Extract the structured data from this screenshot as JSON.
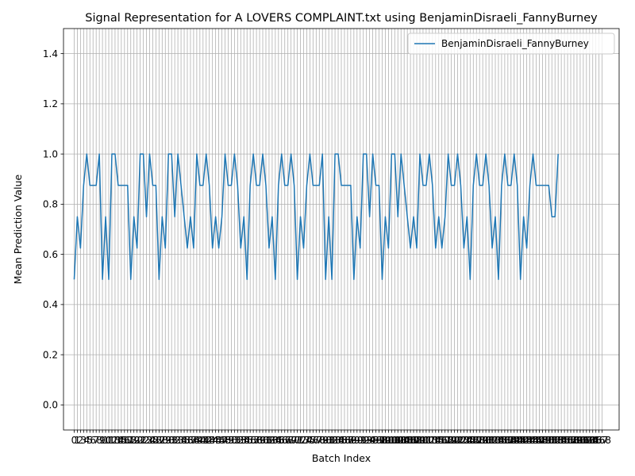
{
  "chart_data": {
    "type": "line",
    "title": "Signal Representation for A LOVERS COMPLAINT.txt using BenjaminDisraeli_FannyBurney",
    "xlabel": "Batch Index",
    "ylabel": "Mean Prediction Value",
    "xlim": [
      -3.4,
      173.4
    ],
    "ylim": [
      -0.1,
      1.5
    ],
    "yticks": [
      0.0,
      0.2,
      0.4,
      0.6,
      0.8,
      1.0,
      1.2,
      1.4
    ],
    "xtick_start": 0,
    "xtick_end": 168,
    "grid": true,
    "legend_position": "top-right",
    "series": [
      {
        "name": "BenjaminDisraeli_FannyBurney",
        "color": "#1f77b4",
        "values": [
          0.5,
          0.75,
          0.625,
          0.875,
          1.0,
          0.875,
          0.875,
          0.875,
          1.0,
          0.5,
          0.75,
          0.5,
          1.0,
          1.0,
          0.875,
          0.875,
          0.875,
          0.875,
          0.5,
          0.75,
          0.625,
          1.0,
          1.0,
          0.75,
          1.0,
          0.875,
          0.875,
          0.5,
          0.75,
          0.625,
          1.0,
          1.0,
          0.75,
          1.0,
          0.875,
          0.75,
          0.625,
          0.75,
          0.625,
          1.0,
          0.875,
          0.875,
          1.0,
          0.875,
          0.625,
          0.75,
          0.625,
          0.75,
          1.0,
          0.875,
          0.875,
          1.0,
          0.875,
          0.625,
          0.75,
          0.5,
          0.875,
          1.0,
          0.875,
          0.875,
          1.0,
          0.875,
          0.625,
          0.75,
          0.5,
          0.875,
          1.0,
          0.875,
          0.875,
          1.0,
          0.875,
          0.5,
          0.75,
          0.625,
          0.875,
          1.0,
          0.875,
          0.875,
          0.875,
          1.0,
          0.5,
          0.75,
          0.5,
          1.0,
          1.0,
          0.875,
          0.875,
          0.875,
          0.875,
          0.5,
          0.75,
          0.625,
          1.0,
          1.0,
          0.75,
          1.0,
          0.875,
          0.875,
          0.5,
          0.75,
          0.625,
          1.0,
          1.0,
          0.75,
          1.0,
          0.875,
          0.75,
          0.625,
          0.75,
          0.625,
          1.0,
          0.875,
          0.875,
          1.0,
          0.875,
          0.625,
          0.75,
          0.625,
          0.75,
          1.0,
          0.875,
          0.875,
          1.0,
          0.875,
          0.625,
          0.75,
          0.5,
          0.875,
          1.0,
          0.875,
          0.875,
          1.0,
          0.875,
          0.625,
          0.75,
          0.5,
          0.875,
          1.0,
          0.875,
          0.875,
          1.0,
          0.875,
          0.5,
          0.75,
          0.625,
          0.875,
          1.0,
          0.875,
          0.875,
          0.875,
          0.875,
          0.875,
          0.75,
          0.75,
          1.0
        ]
      }
    ]
  }
}
